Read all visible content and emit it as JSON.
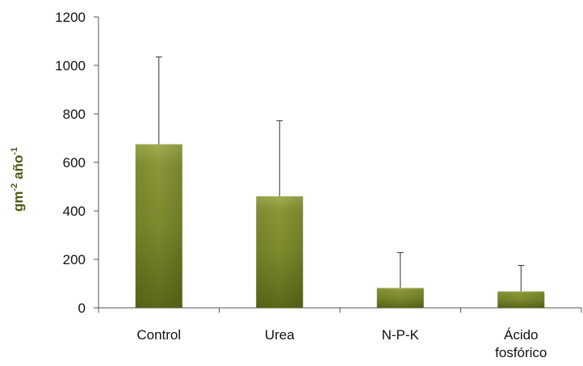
{
  "chart_data": {
    "type": "bar",
    "categories": [
      [
        "Control"
      ],
      [
        "Urea"
      ],
      [
        "N-P-K"
      ],
      [
        "Ácido",
        "fosfórico"
      ]
    ],
    "values": [
      675,
      460,
      82,
      68
    ],
    "error_upper": [
      1035,
      772,
      228,
      175
    ],
    "ylabel": {
      "unit1": "gm",
      "exp1": "-2",
      "unit2": " año",
      "exp2": "-1"
    },
    "ylim": [
      0,
      1200
    ],
    "yticks": [
      0,
      200,
      400,
      600,
      800,
      1000,
      1200
    ],
    "grid": false,
    "legend": "none",
    "colors": {
      "bar_light": "#a3ae52",
      "bar_mid": "#7d8a2c",
      "bar_dark": "#4f5a12",
      "axis": "#555555",
      "label": "#4c5a12"
    }
  }
}
